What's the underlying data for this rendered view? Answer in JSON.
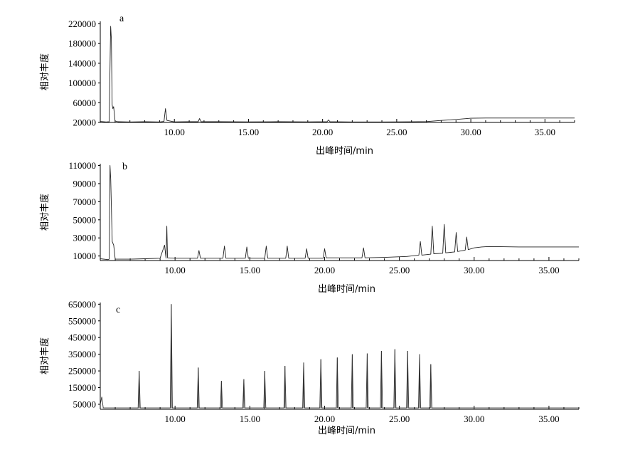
{
  "chart_data": [
    {
      "type": "line",
      "panel_label": "a",
      "xlabel": "出峰时间/min",
      "ylabel": "相对丰度",
      "xlim": [
        5.0,
        37.0
      ],
      "ylim": [
        20000,
        225000
      ],
      "xticks": [
        10,
        15,
        20,
        25,
        30,
        35
      ],
      "xtick_labels": [
        "10.00",
        "15.00",
        "20.00",
        "25.00",
        "30.00",
        "35.00"
      ],
      "yticks": [
        20000,
        60000,
        100000,
        140000,
        180000,
        220000
      ],
      "ytick_labels": [
        "20000",
        "60000",
        "100000",
        "140000",
        "180000",
        "220000"
      ],
      "series": [
        {
          "x": [
            5.0,
            5.4,
            5.6,
            5.7,
            5.75,
            5.8,
            5.85,
            5.9,
            6.0,
            6.2,
            7.0,
            8.0,
            9.0,
            9.3,
            9.4,
            9.5,
            10.0,
            11.0,
            11.6,
            11.7,
            11.8,
            13.0,
            15.0,
            17.0,
            19.0,
            20.3,
            20.4,
            20.5,
            22.0,
            24.0,
            26.0,
            27.0,
            28.0,
            29.0,
            30.0,
            31.0,
            33.0,
            35.0,
            37.0
          ],
          "y": [
            22000,
            21000,
            21500,
            215000,
            190000,
            56000,
            48000,
            52000,
            23000,
            21500,
            21000,
            21500,
            21000,
            22000,
            48000,
            24000,
            21200,
            21500,
            21500,
            28000,
            21500,
            21500,
            21200,
            21500,
            21200,
            21500,
            25000,
            21500,
            21000,
            21000,
            21300,
            21800,
            24000,
            26000,
            28500,
            29000,
            29000,
            29000,
            29000
          ]
        }
      ]
    },
    {
      "type": "line",
      "panel_label": "b",
      "xlabel": "出峰时间/min",
      "ylabel": "相对丰度",
      "xlim": [
        5.0,
        37.0
      ],
      "ylim": [
        5000,
        112000
      ],
      "xticks": [
        10,
        15,
        20,
        25,
        30,
        35
      ],
      "xtick_labels": [
        "10.00",
        "15.00",
        "20.00",
        "25.00",
        "30.00",
        "35.00"
      ],
      "yticks": [
        10000,
        30000,
        50000,
        70000,
        90000,
        110000
      ],
      "ytick_labels": [
        "10000",
        "30000",
        "50000",
        "70000",
        "90000",
        "110000"
      ],
      "series": [
        {
          "x": [
            5.0,
            5.5,
            5.6,
            5.65,
            5.7,
            5.8,
            5.9,
            6.0,
            7.0,
            8.0,
            9.0,
            9.3,
            9.4,
            9.45,
            9.5,
            10.0,
            11.0,
            11.5,
            11.6,
            11.7,
            12.5,
            13.2,
            13.3,
            13.4,
            14.0,
            14.7,
            14.8,
            14.9,
            16.0,
            16.1,
            16.2,
            17.4,
            17.5,
            17.6,
            18.7,
            18.8,
            18.9,
            19.9,
            20.0,
            20.1,
            21.0,
            22.5,
            22.6,
            22.7,
            24.0,
            25.5,
            26.3,
            26.4,
            26.5,
            27.1,
            27.2,
            27.3,
            27.9,
            28.0,
            28.1,
            28.7,
            28.8,
            28.9,
            29.4,
            29.5,
            29.6,
            30.0,
            30.5,
            31.0,
            33.0,
            35.0,
            37.0
          ],
          "y": [
            7000,
            6000,
            6500,
            110000,
            95000,
            26000,
            22000,
            6500,
            6500,
            7000,
            7500,
            22000,
            7500,
            43000,
            8000,
            7500,
            7500,
            7500,
            16000,
            7500,
            7500,
            7500,
            21000,
            7500,
            7500,
            7500,
            20000,
            7500,
            7500,
            21000,
            7500,
            7500,
            21000,
            7500,
            7500,
            18000,
            7500,
            7500,
            18000,
            8000,
            8000,
            8000,
            19000,
            8000,
            8500,
            9500,
            11000,
            26000,
            11000,
            12000,
            43000,
            12500,
            13000,
            45000,
            13500,
            14500,
            36000,
            15000,
            16500,
            31000,
            17000,
            19000,
            20000,
            20500,
            20000,
            20000,
            20000
          ]
        }
      ]
    },
    {
      "type": "line",
      "panel_label": "c",
      "xlabel": "出峰时间/min",
      "ylabel": "相对丰度",
      "xlim": [
        5.0,
        37.0
      ],
      "ylim": [
        20000,
        660000
      ],
      "xticks": [
        10,
        15,
        20,
        25,
        30,
        35
      ],
      "xtick_labels": [
        "10.00",
        "15.00",
        "20.00",
        "25.00",
        "30.00",
        "35.00"
      ],
      "yticks": [
        50000,
        150000,
        250000,
        350000,
        450000,
        550000,
        650000
      ],
      "ytick_labels": [
        "50000",
        "150000",
        "250000",
        "350000",
        "450000",
        "550000",
        "650000"
      ],
      "peaks": {
        "x": [
          7.6,
          9.75,
          11.55,
          13.1,
          14.6,
          16.0,
          17.35,
          18.6,
          19.75,
          20.85,
          21.85,
          22.85,
          23.8,
          24.7,
          25.55,
          26.35,
          27.1
        ],
        "y": [
          250000,
          650000,
          270000,
          190000,
          200000,
          250000,
          280000,
          300000,
          320000,
          330000,
          350000,
          355000,
          370000,
          380000,
          370000,
          350000,
          290000
        ]
      },
      "baseline": 28000
    }
  ]
}
